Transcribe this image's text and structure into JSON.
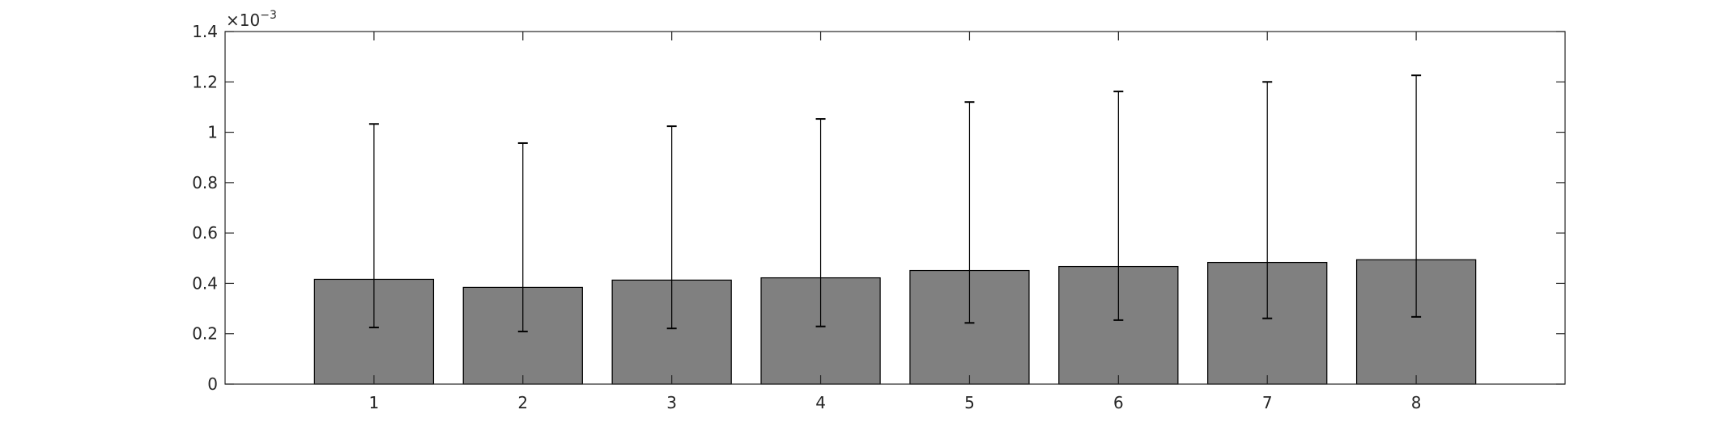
{
  "chart_data": {
    "type": "bar",
    "title": "",
    "xlabel": "",
    "ylabel": "",
    "y_exponent_label": {
      "base": "×10",
      "exponent": "−3"
    },
    "categories": [
      "1",
      "2",
      "3",
      "4",
      "5",
      "6",
      "7",
      "8"
    ],
    "values": [
      0.000416,
      0.000384,
      0.000413,
      0.000422,
      0.000451,
      0.000467,
      0.000483,
      0.000494
    ],
    "error_lower": [
      0.000225,
      0.000209,
      0.000221,
      0.000229,
      0.000243,
      0.000254,
      0.000261,
      0.000267
    ],
    "error_upper": [
      0.001033,
      0.000957,
      0.001024,
      0.001053,
      0.00112,
      0.001162,
      0.0012,
      0.001226
    ],
    "ylim": [
      0,
      0.0014
    ],
    "xlim": [
      0,
      9
    ],
    "yticks": [
      0,
      0.0002,
      0.0004,
      0.0006,
      0.0008,
      0.001,
      0.0012,
      0.0014
    ],
    "ytick_labels": [
      "0",
      "0.2",
      "0.4",
      "0.6",
      "0.8",
      "1",
      "1.2",
      "1.4"
    ],
    "bar_color": "#808080",
    "bar_edge_color": "#000000",
    "errorbar_color": "#000000",
    "axis_color": "#262626",
    "grid": false,
    "box": true
  }
}
